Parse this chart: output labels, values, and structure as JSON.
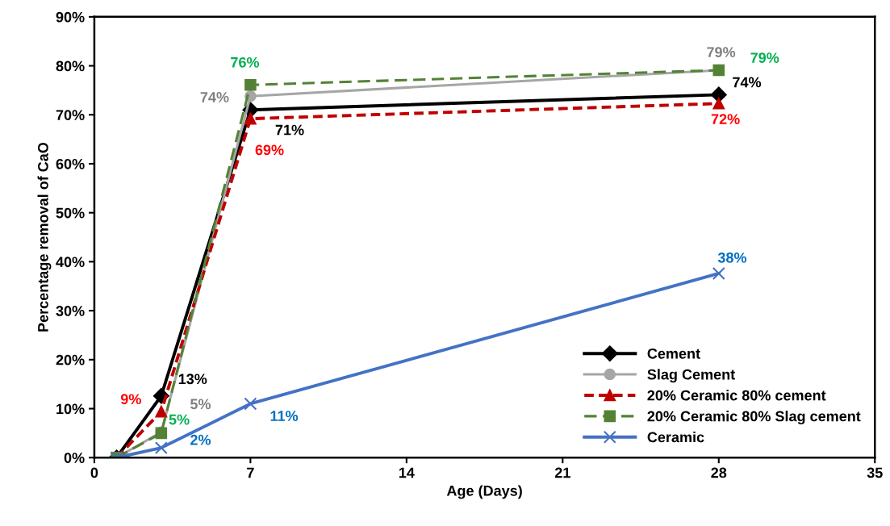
{
  "chart_data": {
    "type": "line",
    "xlabel": "Age (Days)",
    "ylabel": "Percentage removal of CaO",
    "x": [
      1,
      3,
      7,
      28
    ],
    "xlim": [
      0,
      35
    ],
    "xticks": [
      0,
      7,
      14,
      21,
      28,
      35
    ],
    "ylim": [
      0,
      90
    ],
    "yticks": [
      {
        "value": 0,
        "label": "0%"
      },
      {
        "value": 10,
        "label": "10%"
      },
      {
        "value": 20,
        "label": "20%"
      },
      {
        "value": 30,
        "label": "30%"
      },
      {
        "value": 40,
        "label": "40%"
      },
      {
        "value": 50,
        "label": "50%"
      },
      {
        "value": 60,
        "label": "60%"
      },
      {
        "value": 70,
        "label": "70%"
      },
      {
        "value": 80,
        "label": "80%"
      },
      {
        "value": 90,
        "label": "90%"
      }
    ],
    "grid": false,
    "legend": "bottom right",
    "series": [
      {
        "name": "Cement",
        "color": "#000000",
        "marker": "diamond",
        "line_style": "solid",
        "values": [
          0,
          12.6,
          71.0,
          74.1
        ],
        "value_labels": [
          null,
          "13%",
          "71%",
          "74%"
        ]
      },
      {
        "name": "Slag Cement",
        "color": "#a6a6a6",
        "marker": "circle",
        "line_style": "solid",
        "values": [
          0,
          5.2,
          73.8,
          79.1
        ],
        "value_labels": [
          null,
          "5%",
          "74%",
          "79%"
        ]
      },
      {
        "name": "20% Ceramic 80% cement",
        "color": "#c00000",
        "marker": "triangle",
        "line_style": "dotted",
        "values": [
          0,
          9.4,
          69.2,
          72.3
        ],
        "value_labels": [
          null,
          "9%",
          "69%",
          "72%"
        ]
      },
      {
        "name": "20% Ceramic 80% Slag cement",
        "color": "#548235",
        "marker": "square",
        "line_style": "dashed",
        "values": [
          0,
          5.0,
          76.1,
          79.1
        ],
        "value_labels": [
          null,
          "5%",
          "76%",
          "79%"
        ]
      },
      {
        "name": "Ceramic",
        "color": "#4472c4",
        "marker": "cross",
        "line_style": "solid",
        "values": [
          0,
          2.0,
          11.0,
          37.6
        ],
        "value_labels": [
          null,
          "2%",
          "11%",
          "38%"
        ]
      }
    ]
  }
}
